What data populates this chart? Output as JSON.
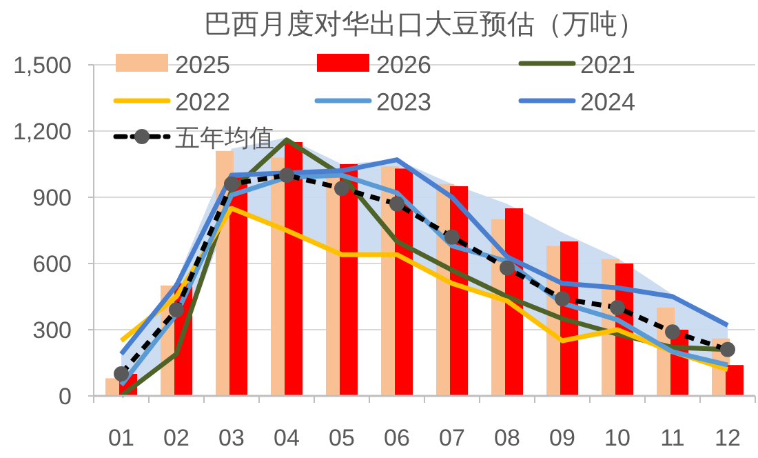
{
  "chart_data": {
    "type": "bar",
    "title": "巴西月度对华出口大豆预估（万吨）",
    "categories": [
      "01",
      "02",
      "03",
      "04",
      "05",
      "06",
      "07",
      "08",
      "09",
      "10",
      "11",
      "12"
    ],
    "series": [
      {
        "name": "2025",
        "color": "#f9c193",
        "values": [
          80,
          500,
          1110,
          1080,
          990,
          1040,
          960,
          800,
          680,
          620,
          400,
          260
        ]
      },
      {
        "name": "2026",
        "color": "#ff0000",
        "values": [
          100,
          510,
          990,
          1150,
          1050,
          1030,
          950,
          850,
          700,
          600,
          300,
          140
        ]
      },
      {
        "name": "2021",
        "type": "line",
        "color": "#4f6228",
        "values": [
          0,
          190,
          930,
          1160,
          1000,
          700,
          570,
          450,
          350,
          280,
          220,
          210
        ]
      },
      {
        "name": "2022",
        "type": "line",
        "color": "#ffc000",
        "values": [
          250,
          450,
          850,
          750,
          640,
          640,
          510,
          430,
          250,
          300,
          200,
          120
        ]
      },
      {
        "name": "2023",
        "type": "line",
        "color": "#5b9bd5",
        "values": [
          50,
          370,
          910,
          990,
          1000,
          920,
          680,
          610,
          420,
          345,
          200,
          140
        ]
      },
      {
        "name": "2024",
        "type": "line",
        "color": "#4a7fd0",
        "values": [
          190,
          500,
          1000,
          1010,
          1020,
          1070,
          900,
          630,
          510,
          490,
          450,
          320
        ]
      },
      {
        "name": "五年均值",
        "type": "line",
        "color": "#000000",
        "line_style": "dashed",
        "marker": "circle",
        "values": [
          100,
          390,
          960,
          1000,
          940,
          870,
          720,
          580,
          440,
          400,
          290,
          210
        ],
        "lower": [
          0,
          190,
          850,
          750,
          640,
          640,
          510,
          430,
          250,
          280,
          200,
          120
        ],
        "upper": [
          200,
          520,
          1120,
          1170,
          1050,
          1070,
          960,
          870,
          740,
          625,
          460,
          330
        ]
      }
    ],
    "ylim": [
      0,
      1500
    ],
    "yticks": [
      0,
      300,
      600,
      900,
      {
        "value": 1200,
        "label": "1,200"
      },
      {
        "value": 1500,
        "label": "1,500"
      }
    ],
    "grid": "y",
    "legend": "top"
  }
}
